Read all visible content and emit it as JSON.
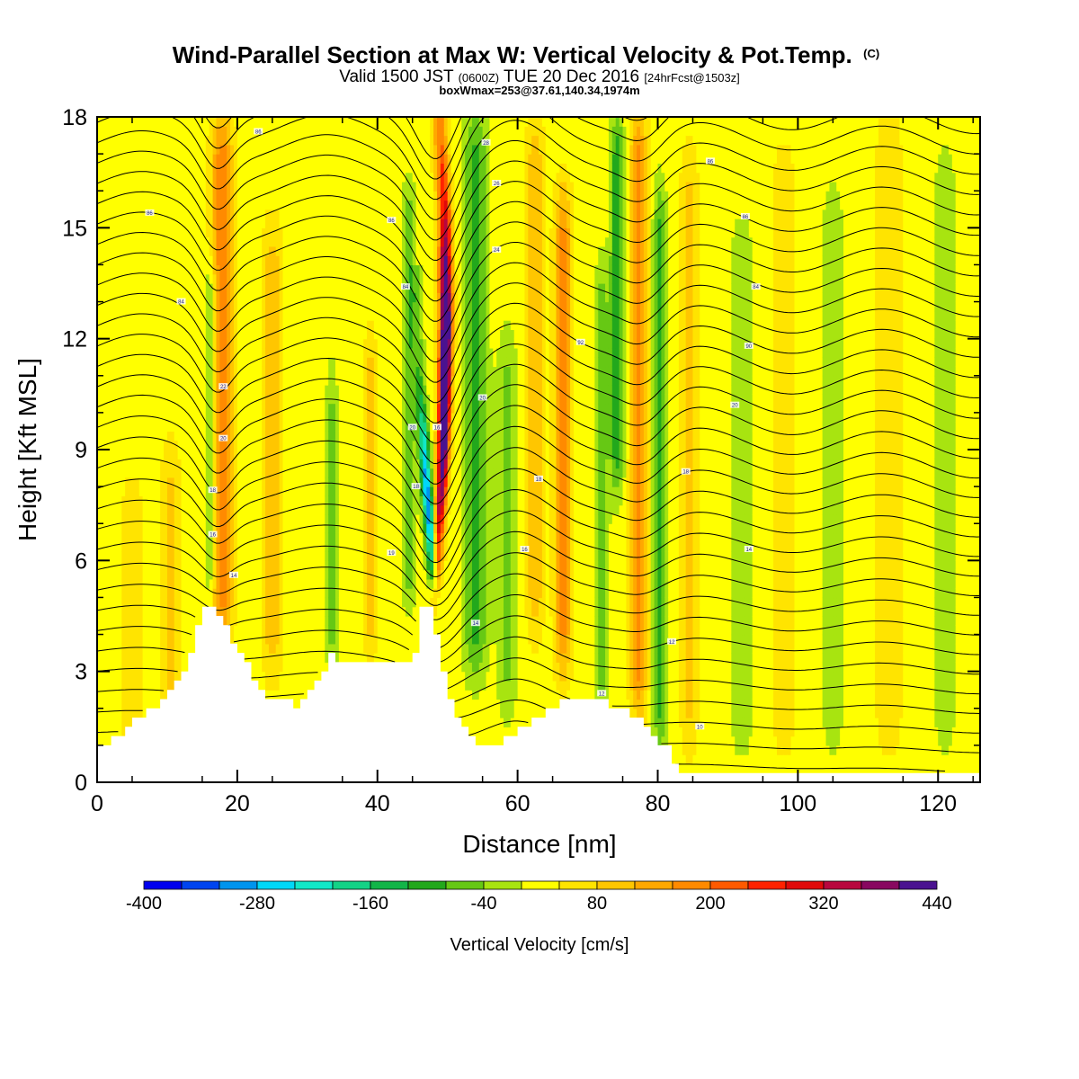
{
  "chart_data": {
    "type": "heatmap",
    "title": "Wind-Parallel Section at Max W: Vertical Velocity & Pot.Temp.",
    "title_suffix": "(C)",
    "subtitle": {
      "part1": "Valid 1500 JST ",
      "part2": "(0600Z)",
      "part3": " TUE 20 Dec 2016 ",
      "part4": "[24hrFcst@1503z]"
    },
    "subtitle2": "boxWmax=253@37.61,140.34,1974m",
    "xlabel": "Distance [nm]",
    "ylabel": "Height [Kft MSL]",
    "xlim": [
      0,
      126
    ],
    "ylim": [
      0,
      18
    ],
    "x_ticks": [
      "0",
      "20",
      "40",
      "60",
      "80",
      "100",
      "120"
    ],
    "y_ticks": [
      "0",
      "3",
      "6",
      "9",
      "12",
      "15",
      "18"
    ],
    "colorbar": {
      "label": "Vertical Velocity [cm/s]",
      "min": -400,
      "max": 440,
      "step": 40,
      "tick_labels": [
        "-400",
        "-280",
        "-160",
        "-40",
        "80",
        "200",
        "320",
        "440"
      ],
      "colors": [
        "#0000ee",
        "#0044f0",
        "#0094ee",
        "#00d8f8",
        "#11e8c8",
        "#13d286",
        "#12b548",
        "#22a81c",
        "#66c814",
        "#a8e410",
        "#ffff00",
        "#ffe400",
        "#ffc600",
        "#ffa800",
        "#ff8a00",
        "#ff5a00",
        "#ff2200",
        "#e00a0a",
        "#b8063e",
        "#880860",
        "#4a1290"
      ]
    },
    "terrain_kft": [
      [
        0,
        1.0
      ],
      [
        2,
        1.2
      ],
      [
        4,
        1.5
      ],
      [
        6,
        1.8
      ],
      [
        8,
        2.1
      ],
      [
        10,
        2.5
      ],
      [
        12,
        3.0
      ],
      [
        14,
        4.2
      ],
      [
        15,
        4.8
      ],
      [
        17,
        4.6
      ],
      [
        18.5,
        4.0
      ],
      [
        20,
        3.6
      ],
      [
        22,
        2.7
      ],
      [
        24,
        2.3
      ],
      [
        26,
        2.2
      ],
      [
        28,
        2.1
      ],
      [
        30,
        2.4
      ],
      [
        31.5,
        2.8
      ],
      [
        33,
        3.4
      ],
      [
        35,
        3.3
      ],
      [
        38,
        3.2
      ],
      [
        42,
        3.2
      ],
      [
        44,
        3.3
      ],
      [
        45,
        3.6
      ],
      [
        46,
        4.7
      ],
      [
        47.5,
        4.6
      ],
      [
        48.5,
        3.5
      ],
      [
        49.5,
        2.6
      ],
      [
        50.5,
        2.0
      ],
      [
        52,
        1.4
      ],
      [
        54,
        1.1
      ],
      [
        57,
        1.0
      ],
      [
        60,
        1.4
      ],
      [
        63,
        1.8
      ],
      [
        66,
        2.2
      ],
      [
        70,
        2.3
      ],
      [
        73,
        2.1
      ],
      [
        76,
        1.8
      ],
      [
        79,
        1.3
      ],
      [
        81,
        0.9
      ],
      [
        82,
        0.6
      ],
      [
        83,
        0.3
      ],
      [
        100,
        0.3
      ],
      [
        126,
        0.3
      ]
    ],
    "updraft": {
      "axis": [
        [
          48.2,
          4.8
        ],
        [
          49.4,
          9.0
        ],
        [
          49.8,
          12.5
        ],
        [
          49.6,
          15.5
        ],
        [
          48.8,
          18
        ]
      ],
      "peak_cm_s": 440
    },
    "downdraft": {
      "axis": [
        [
          48.3,
          4.8
        ],
        [
          47.2,
          7.5
        ],
        [
          46.2,
          10.5
        ],
        [
          45.6,
          13.0
        ]
      ],
      "min_cm_s": -280
    },
    "bands": [
      {
        "x": 17.8,
        "amp": 170,
        "width": 1.5,
        "ymin": 4,
        "ymax": 18
      },
      {
        "x": 16.2,
        "amp": -110,
        "width": 0.8,
        "ymin": 5,
        "ymax": 14
      },
      {
        "x": 25,
        "amp": 90,
        "width": 1.4,
        "ymin": 3,
        "ymax": 15
      },
      {
        "x": 33.5,
        "amp": -70,
        "width": 0.9,
        "ymin": 3,
        "ymax": 11
      },
      {
        "x": 39,
        "amp": 80,
        "width": 1.0,
        "ymin": 3.5,
        "ymax": 12
      },
      {
        "x": 44.5,
        "amp": -100,
        "width": 0.9,
        "ymin": 5,
        "ymax": 16
      },
      {
        "x": 54,
        "amp": -120,
        "width": 1.6,
        "ymin": 3,
        "ymax": 18
      },
      {
        "x": 58.5,
        "amp": -70,
        "width": 1.4,
        "ymin": 2,
        "ymax": 12
      },
      {
        "x": 62.5,
        "amp": 90,
        "width": 1.2,
        "ymin": 4,
        "ymax": 18
      },
      {
        "x": 66.5,
        "amp": 150,
        "width": 1.2,
        "ymin": 3,
        "ymax": 16
      },
      {
        "x": 72,
        "amp": -80,
        "width": 1.0,
        "ymin": 2,
        "ymax": 14
      },
      {
        "x": 74.2,
        "amp": -130,
        "width": 1.0,
        "ymin": 8,
        "ymax": 18
      },
      {
        "x": 77.3,
        "amp": 160,
        "width": 1.2,
        "ymin": 2,
        "ymax": 18
      },
      {
        "x": 80.3,
        "amp": -110,
        "width": 1.0,
        "ymin": 1,
        "ymax": 16
      },
      {
        "x": 84.5,
        "amp": 70,
        "width": 1.3,
        "ymin": 1,
        "ymax": 17
      },
      {
        "x": 92,
        "amp": -60,
        "width": 1.5,
        "ymin": 1,
        "ymax": 15
      },
      {
        "x": 98,
        "amp": 60,
        "width": 1.5,
        "ymin": 1,
        "ymax": 17
      },
      {
        "x": 105,
        "amp": -50,
        "width": 1.6,
        "ymin": 1,
        "ymax": 16
      },
      {
        "x": 113,
        "amp": 60,
        "width": 1.8,
        "ymin": 1,
        "ymax": 18
      },
      {
        "x": 121,
        "amp": -50,
        "width": 1.6,
        "ymin": 1,
        "ymax": 17
      },
      {
        "x": 5,
        "amp": 60,
        "width": 1.5,
        "ymin": 1,
        "ymax": 8
      },
      {
        "x": 10.5,
        "amp": 70,
        "width": 1.5,
        "ymin": 1,
        "ymax": 9
      }
    ],
    "theta_labels": [
      {
        "text": "86",
        "x": 23,
        "y": 17.6
      },
      {
        "text": "86",
        "x": 7.5,
        "y": 15.4
      },
      {
        "text": "84",
        "x": 12,
        "y": 13.0
      },
      {
        "text": "22",
        "x": 18,
        "y": 10.7
      },
      {
        "text": "20",
        "x": 18,
        "y": 9.3
      },
      {
        "text": "18",
        "x": 16.5,
        "y": 7.9
      },
      {
        "text": "16",
        "x": 16.5,
        "y": 6.7
      },
      {
        "text": "14",
        "x": 19.5,
        "y": 5.6
      },
      {
        "text": "86",
        "x": 42,
        "y": 15.2
      },
      {
        "text": "84",
        "x": 44,
        "y": 13.4
      },
      {
        "text": "20",
        "x": 45,
        "y": 9.6
      },
      {
        "text": "18",
        "x": 45.5,
        "y": 8.0
      },
      {
        "text": "19",
        "x": 42,
        "y": 6.2
      },
      {
        "text": "16",
        "x": 48.5,
        "y": 9.6
      },
      {
        "text": "28",
        "x": 55.5,
        "y": 17.3
      },
      {
        "text": "26",
        "x": 57,
        "y": 16.2
      },
      {
        "text": "24",
        "x": 57,
        "y": 14.4
      },
      {
        "text": "20",
        "x": 55,
        "y": 10.4
      },
      {
        "text": "18",
        "x": 63,
        "y": 8.2
      },
      {
        "text": "16",
        "x": 61,
        "y": 6.3
      },
      {
        "text": "14",
        "x": 54,
        "y": 4.3
      },
      {
        "text": "12",
        "x": 72,
        "y": 2.4
      },
      {
        "text": "92",
        "x": 69,
        "y": 11.9
      },
      {
        "text": "86",
        "x": 87.5,
        "y": 16.8
      },
      {
        "text": "86",
        "x": 92.5,
        "y": 15.3
      },
      {
        "text": "84",
        "x": 94,
        "y": 13.4
      },
      {
        "text": "90",
        "x": 93,
        "y": 11.8
      },
      {
        "text": "20",
        "x": 91,
        "y": 10.2
      },
      {
        "text": "18",
        "x": 84,
        "y": 8.4
      },
      {
        "text": "14",
        "x": 93,
        "y": 6.3
      },
      {
        "text": "12",
        "x": 82,
        "y": 3.8
      },
      {
        "text": "10",
        "x": 86,
        "y": 1.5
      }
    ]
  }
}
